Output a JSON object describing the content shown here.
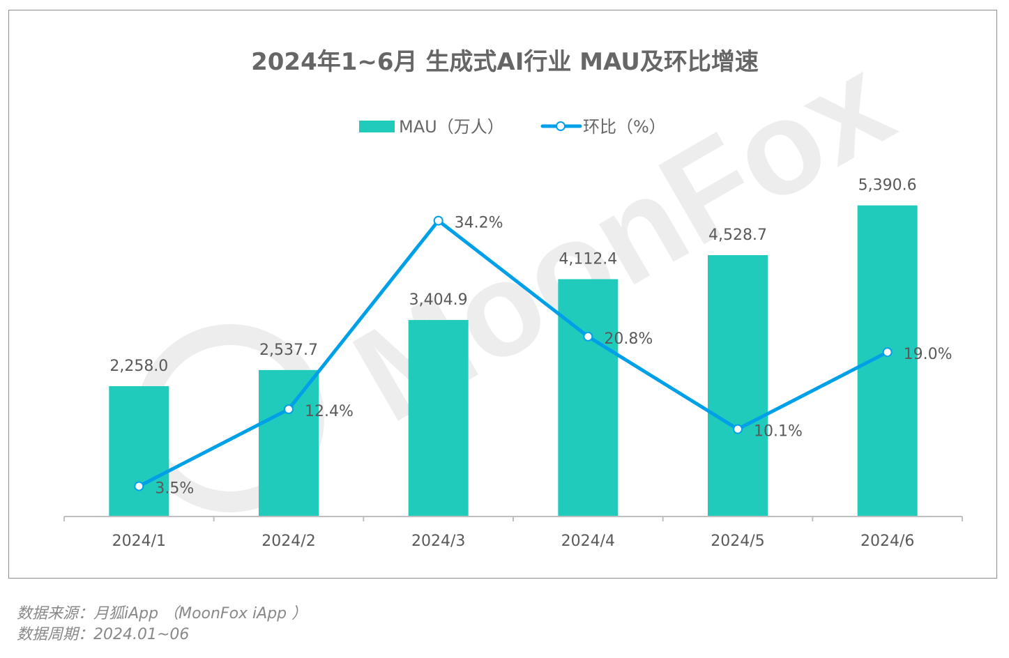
{
  "chart_data": {
    "type": "bar+line",
    "title": "2024年1~6月 生成式AI行业 MAU及环比增速",
    "categories": [
      "2024/1",
      "2024/2",
      "2024/3",
      "2024/4",
      "2024/5",
      "2024/6"
    ],
    "series": [
      {
        "name": "MAU（万人）",
        "type": "bar",
        "color": "#20CBBB",
        "values": [
          2258.0,
          2537.7,
          3404.9,
          4112.4,
          4528.7,
          5390.6
        ],
        "labels": [
          "2,258.0",
          "2,537.7",
          "3,404.9",
          "4,112.4",
          "4,528.7",
          "5,390.6"
        ]
      },
      {
        "name": "环比（%）",
        "type": "line",
        "color": "#00A0E9",
        "values": [
          3.5,
          12.4,
          34.2,
          20.8,
          10.1,
          19.0
        ],
        "labels": [
          "3.5%",
          "12.4%",
          "34.2%",
          "20.8%",
          "10.1%",
          "19.0%"
        ]
      }
    ],
    "legend": "top-center",
    "grid": false
  },
  "watermark": "MoonFox",
  "footer": {
    "source": "数据来源：月狐iApp （MoonFox iApp ）",
    "period": "数据周期：2024.01~06"
  }
}
